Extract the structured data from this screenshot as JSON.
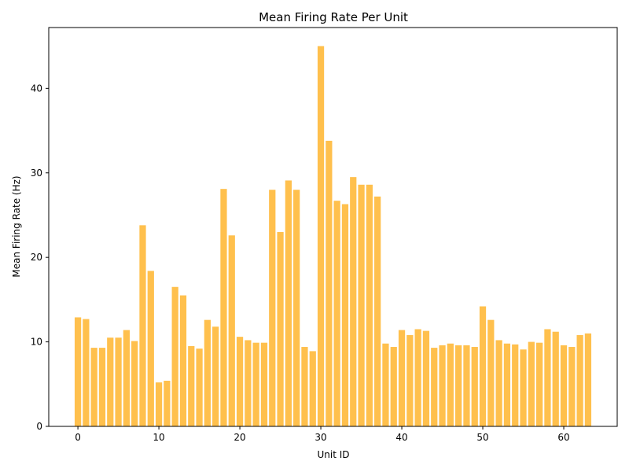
{
  "chart_data": {
    "type": "bar",
    "title": "Mean Firing Rate Per Unit",
    "xlabel": "Unit ID",
    "ylabel": "Mean Firing Rate (Hz)",
    "xlim": [
      -3.6,
      66.6
    ],
    "ylim": [
      0,
      47.2
    ],
    "xticks": [
      0,
      10,
      20,
      30,
      40,
      50,
      60
    ],
    "yticks": [
      0,
      10,
      20,
      30,
      40
    ],
    "bar_color": "#ffc04d",
    "grid": false,
    "categories": [
      0,
      1,
      2,
      3,
      4,
      5,
      6,
      7,
      8,
      9,
      10,
      11,
      12,
      13,
      14,
      15,
      16,
      17,
      18,
      19,
      20,
      21,
      22,
      23,
      24,
      25,
      26,
      27,
      28,
      29,
      30,
      31,
      32,
      33,
      34,
      35,
      36,
      37,
      38,
      39,
      40,
      41,
      42,
      43,
      44,
      45,
      46,
      47,
      48,
      49,
      50,
      51,
      52,
      53,
      54,
      55,
      56,
      57,
      58,
      59,
      60,
      61,
      62,
      63
    ],
    "values": [
      12.9,
      12.7,
      9.3,
      9.3,
      10.5,
      10.5,
      11.4,
      10.1,
      23.8,
      18.4,
      5.2,
      5.4,
      16.5,
      15.5,
      9.5,
      9.2,
      12.6,
      11.8,
      28.1,
      22.6,
      10.6,
      10.2,
      9.9,
      9.9,
      28.0,
      23.0,
      29.1,
      28.0,
      9.4,
      8.9,
      45.0,
      33.8,
      26.7,
      26.3,
      29.5,
      28.6,
      28.6,
      27.2,
      9.8,
      9.4,
      11.4,
      10.8,
      11.5,
      11.3,
      9.3,
      9.6,
      9.8,
      9.6,
      9.6,
      9.4,
      14.2,
      12.6,
      10.2,
      9.8,
      9.7,
      9.1,
      10.0,
      9.9,
      11.5,
      11.2,
      9.6,
      9.4,
      10.8,
      11.0
    ]
  }
}
